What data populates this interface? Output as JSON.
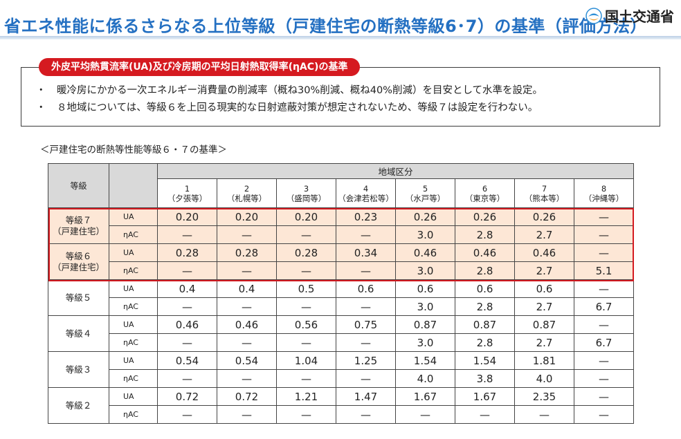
{
  "header": {
    "title": "省エネ性能に係るさらなる上位等級（戸建住宅の断熱等級6･7）の基準（評価方法）",
    "org": "国土交通省"
  },
  "box": {
    "tag": "外皮平均熱貫流率(UA)及び冷房期の平均日射熱取得率(ηAC)の基準",
    "bullets": [
      "暖冷房にかかる一次エネルギー消費量の削減率（概ね30%削減、概ね40%削減）を目安として水準を設定。",
      "８地域については、等級６を上回る現実的な日射遮蔽対策が想定されないため、等級７は設定を行わない。"
    ],
    "bullet_mark": "・"
  },
  "table": {
    "caption": "＜戸建住宅の断熱等性能等級６・７の基準＞",
    "grade_header": "等級",
    "region_header": "地域区分",
    "regions": [
      {
        "num": "1",
        "name": "（夕張等）"
      },
      {
        "num": "2",
        "name": "（札幌等）"
      },
      {
        "num": "3",
        "name": "（盛岡等）"
      },
      {
        "num": "4",
        "name": "（会津若松等）"
      },
      {
        "num": "5",
        "name": "（水戸等）"
      },
      {
        "num": "6",
        "name": "（東京等）"
      },
      {
        "num": "7",
        "name": "（熊本等）"
      },
      {
        "num": "8",
        "name": "（沖縄等）"
      }
    ],
    "grades": [
      {
        "line1": "等級７",
        "line2": "（戸建住宅）",
        "highlight": true,
        "ua": [
          "0.20",
          "0.20",
          "0.20",
          "0.23",
          "0.26",
          "0.26",
          "0.26",
          "—"
        ],
        "nac": [
          "—",
          "—",
          "—",
          "—",
          "3.0",
          "2.8",
          "2.7",
          "—"
        ]
      },
      {
        "line1": "等級６",
        "line2": "（戸建住宅）",
        "highlight": true,
        "ua": [
          "0.28",
          "0.28",
          "0.28",
          "0.34",
          "0.46",
          "0.46",
          "0.46",
          "—"
        ],
        "nac": [
          "—",
          "—",
          "—",
          "—",
          "3.0",
          "2.8",
          "2.7",
          "5.1"
        ]
      },
      {
        "line1": "等級５",
        "line2": "",
        "highlight": false,
        "ua": [
          "0.4",
          "0.4",
          "0.5",
          "0.6",
          "0.6",
          "0.6",
          "0.6",
          "—"
        ],
        "nac": [
          "—",
          "—",
          "—",
          "—",
          "3.0",
          "2.8",
          "2.7",
          "6.7"
        ]
      },
      {
        "line1": "等級４",
        "line2": "",
        "highlight": false,
        "ua": [
          "0.46",
          "0.46",
          "0.56",
          "0.75",
          "0.87",
          "0.87",
          "0.87",
          "—"
        ],
        "nac": [
          "—",
          "—",
          "—",
          "—",
          "3.0",
          "2.8",
          "2.7",
          "6.7"
        ]
      },
      {
        "line1": "等級３",
        "line2": "",
        "highlight": false,
        "ua": [
          "0.54",
          "0.54",
          "1.04",
          "1.25",
          "1.54",
          "1.54",
          "1.81",
          "—"
        ],
        "nac": [
          "—",
          "—",
          "—",
          "—",
          "4.0",
          "3.8",
          "4.0",
          "—"
        ]
      },
      {
        "line1": "等級２",
        "line2": "",
        "highlight": false,
        "ua": [
          "0.72",
          "0.72",
          "1.21",
          "1.47",
          "1.67",
          "1.67",
          "2.35",
          "—"
        ],
        "nac": [
          "—",
          "—",
          "—",
          "—",
          "—",
          "—",
          "—",
          "—"
        ]
      }
    ],
    "metric_ua": "UA",
    "metric_nac": "ηAC"
  },
  "colors": {
    "title": "#2470c2",
    "accent_red": "#d51a20",
    "highlight_fill": "#fde7d6",
    "header_fill": "#d9d9d9"
  }
}
